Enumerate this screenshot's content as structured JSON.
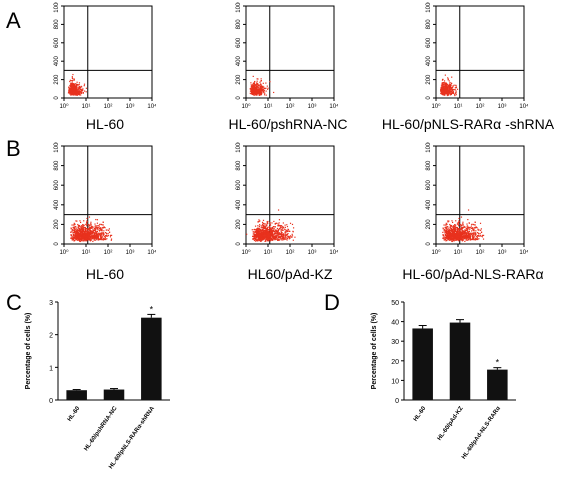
{
  "panels": {
    "A": "A",
    "B": "B",
    "C": "C",
    "D": "D"
  },
  "flow_common": {
    "y_ticks": [
      "0",
      "200",
      "400",
      "600",
      "800",
      "1000"
    ],
    "x_ticks": [
      "10⁰",
      "10¹",
      "10²",
      "10³",
      "10⁴"
    ],
    "dot_color": "#e8321e",
    "gate_x_fraction": 0.27,
    "gate_y_value": 300
  },
  "flow_row_A": [
    {
      "caption": "HL-60",
      "population": "small"
    },
    {
      "caption": "HL-60/pshRNA-NC",
      "population": "small"
    },
    {
      "caption": "HL-60/pNLS-RARα -shRNA",
      "population": "small"
    }
  ],
  "flow_row_B": [
    {
      "caption": "HL-60",
      "population": "wide"
    },
    {
      "caption": "HL60/pAd-KZ",
      "population": "wide"
    },
    {
      "caption": "HL-60/pAd-NLS-RARα",
      "population": "wide"
    }
  ],
  "chart_data": [
    {
      "type": "bar",
      "panel": "C",
      "ylabel": "Percentage of cells (%)",
      "categories": [
        "HL-60",
        "HL-60/pshRNA-NC",
        "HL-60/pNLS-RARα-shRNA"
      ],
      "values": [
        0.3,
        0.32,
        2.52
      ],
      "errors": [
        0.02,
        0.03,
        0.1
      ],
      "significance": [
        "",
        "",
        "*"
      ],
      "ylim": [
        0,
        3
      ],
      "yticks": [
        "0",
        "1",
        "2",
        "3"
      ],
      "bar_color": "#111111"
    },
    {
      "type": "bar",
      "panel": "D",
      "ylabel": "Percentage of cells (%)",
      "categories": [
        "HL-60",
        "HL-60/pAd-KZ",
        "HL-60/pAd-NLS-RARα"
      ],
      "values": [
        36.5,
        39.5,
        15.5
      ],
      "errors": [
        1.5,
        1.5,
        1.0
      ],
      "significance": [
        "",
        "",
        "*"
      ],
      "ylim": [
        0,
        50
      ],
      "yticks": [
        "0",
        "10",
        "20",
        "30",
        "40",
        "50"
      ],
      "bar_color": "#111111"
    }
  ]
}
